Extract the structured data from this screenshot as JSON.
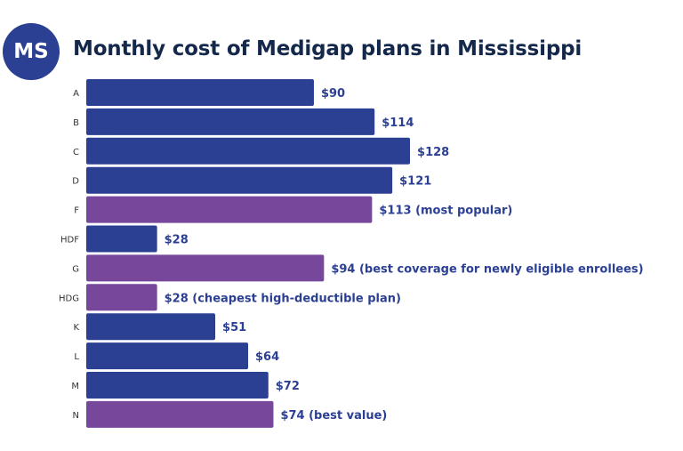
{
  "badge": "MS",
  "colors": {
    "standard": "#2b3f93",
    "highlight": "#76479b",
    "title": "#14284b"
  },
  "chart_data": {
    "type": "bar",
    "orientation": "horizontal",
    "title": "Monthly cost of Medigap plans in Mississippi",
    "categories": [
      "A",
      "B",
      "C",
      "D",
      "F",
      "HDF",
      "G",
      "HDG",
      "K",
      "L",
      "M",
      "N"
    ],
    "values": [
      90,
      114,
      128,
      121,
      113,
      28,
      94,
      28,
      51,
      64,
      72,
      74
    ],
    "data_labels": [
      "$90",
      "$114",
      "$128",
      "$121",
      "$113 (most popular)",
      "$28",
      "$94 (best coverage for newly eligible enrollees)",
      "$28 (cheapest high-deductible plan)",
      "$51",
      "$64",
      "$72",
      "$74 (best value)"
    ],
    "highlighted": [
      "F",
      "G",
      "HDG",
      "N"
    ],
    "xlabel": "",
    "ylabel": "",
    "grid": false
  }
}
